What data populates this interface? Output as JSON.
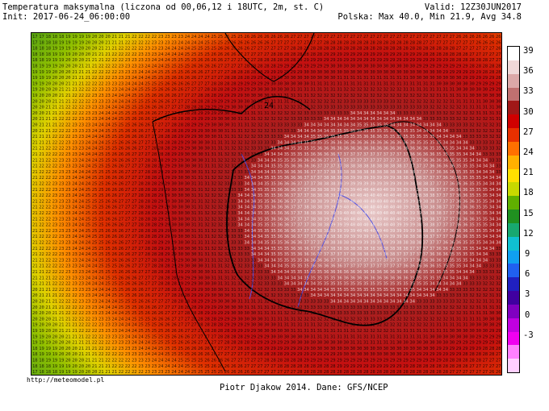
{
  "header": {
    "title": "Temperatura maksymalna (liczona od 00,06,12 i 18UTC, 2m, st. C)",
    "init": "Init: 2017-06-24_06:00:00",
    "valid": "Valid: 12Z30JUN2017",
    "stats": "Polska: Max 40.0, Min 21.9, Avg 34.8"
  },
  "legend": {
    "labels": [
      "39",
      "36",
      "33",
      "30",
      "27",
      "24",
      "21",
      "18",
      "15",
      "12",
      "9",
      "6",
      "3",
      "0",
      "-3"
    ],
    "colors": [
      "#ffffff",
      "#f0d8d8",
      "#dca8a8",
      "#c07070",
      "#a01818",
      "#d00000",
      "#e83000",
      "#ff7000",
      "#ffb000",
      "#ffe000",
      "#c8d800",
      "#60b000",
      "#209020",
      "#18a870",
      "#10c0d0",
      "#10a0f0",
      "#2060f0",
      "#2020c0",
      "#4000a0",
      "#8000c0",
      "#c000e0",
      "#f000f0",
      "#ff80ff",
      "#ffd0ff"
    ]
  },
  "map": {
    "contour_label": "24",
    "values": [
      "17",
      "18",
      "19",
      "20",
      "21",
      "22",
      "23",
      "24",
      "25",
      "26",
      "27",
      "28",
      "29",
      "30",
      "31",
      "32",
      "33",
      "34",
      "35",
      "36",
      "37",
      "38",
      "39",
      "40"
    ]
  },
  "footer": {
    "url": "http://meteomodel.pl",
    "credit": "Piotr Djakow 2014. Dane: GFS/NCEP"
  }
}
